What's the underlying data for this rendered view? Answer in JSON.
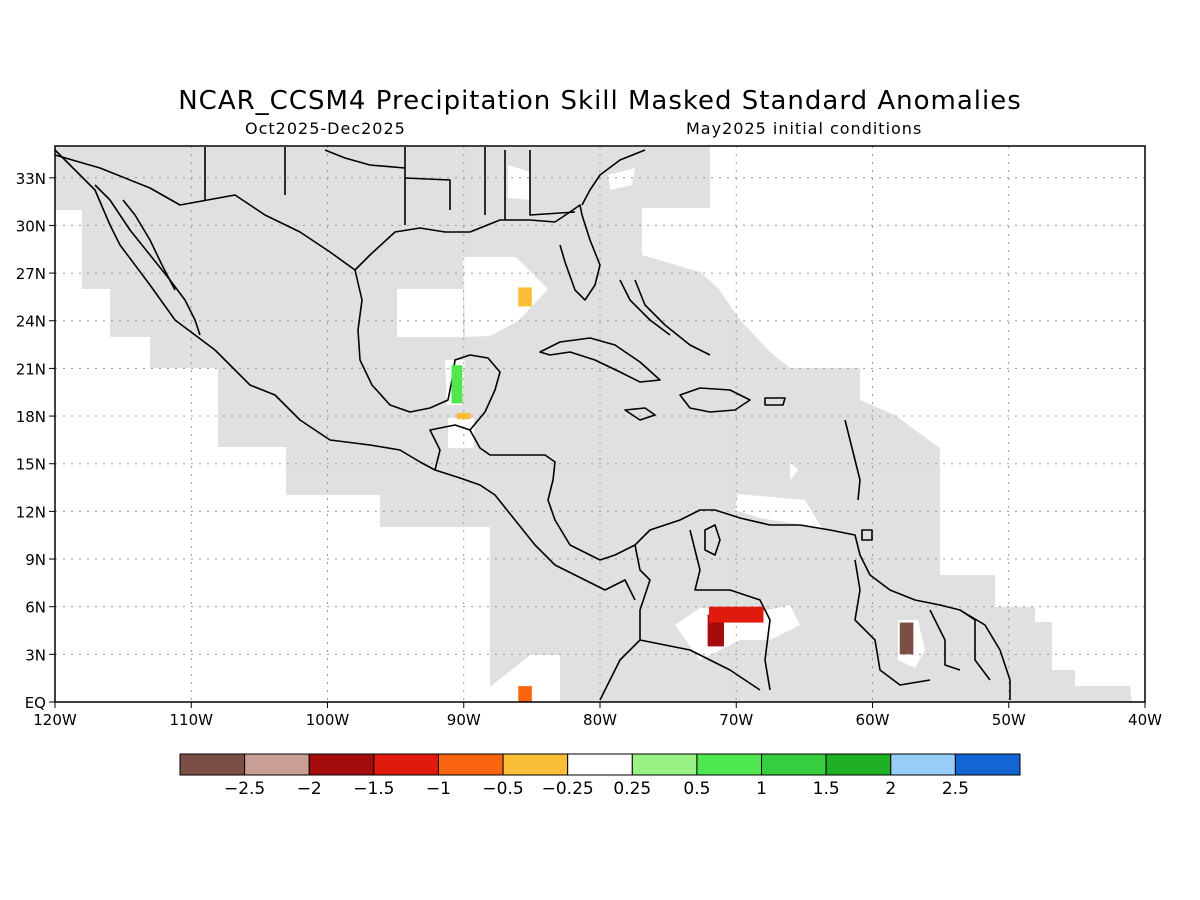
{
  "title": "NCAR_CCSM4 Precipitation Skill Masked Standard Anomalies",
  "subtitle_left": "Oct2025-Dec2025",
  "subtitle_right": "May2025 initial conditions",
  "map": {
    "lon_range": [
      -120,
      -40
    ],
    "lat_range": [
      0,
      35
    ],
    "grid": true,
    "land_outline_color": "#000000",
    "masked_fill_color": "#e0e0e0",
    "lon_ticks": [
      {
        "value": -120,
        "label": "120W"
      },
      {
        "value": -110,
        "label": "110W"
      },
      {
        "value": -100,
        "label": "100W"
      },
      {
        "value": -90,
        "label": "90W"
      },
      {
        "value": -80,
        "label": "80W"
      },
      {
        "value": -70,
        "label": "70W"
      },
      {
        "value": -60,
        "label": "60W"
      },
      {
        "value": -50,
        "label": "50W"
      },
      {
        "value": -40,
        "label": "40W"
      }
    ],
    "lat_ticks": [
      {
        "value": 0,
        "label": "EQ"
      },
      {
        "value": 3,
        "label": "3N"
      },
      {
        "value": 6,
        "label": "6N"
      },
      {
        "value": 9,
        "label": "9N"
      },
      {
        "value": 12,
        "label": "12N"
      },
      {
        "value": 15,
        "label": "15N"
      },
      {
        "value": 18,
        "label": "18N"
      },
      {
        "value": 21,
        "label": "21N"
      },
      {
        "value": 24,
        "label": "24N"
      },
      {
        "value": 27,
        "label": "27N"
      },
      {
        "value": 30,
        "label": "30N"
      },
      {
        "value": 33,
        "label": "33N"
      }
    ],
    "anomaly_cells": [
      {
        "lon": -85.5,
        "lat": 25.5,
        "level": "-0.5 to -0.25"
      },
      {
        "lon": -90.5,
        "lat": 20.0,
        "level": "0.5 to 1"
      },
      {
        "lon": -90.0,
        "lat": 18.0,
        "level": "-0.5 to -0.25"
      },
      {
        "lon": -85.5,
        "lat": 0.5,
        "level": "-1 to -0.5"
      },
      {
        "lon": -71.5,
        "lat": 4.5,
        "level": "-2 to -1.5"
      },
      {
        "lon": -70.0,
        "lat": 5.5,
        "level": "-1.5 to -1"
      },
      {
        "lon": -57.5,
        "lat": 4.0,
        "level": "below -2.5"
      }
    ]
  },
  "colorbar": {
    "colors": [
      "#7b4f45",
      "#c99f95",
      "#a50d0d",
      "#e01a0d",
      "#fc6510",
      "#fbbe37",
      "#ffffff",
      "#99f084",
      "#4fe74f",
      "#36cd3e",
      "#1fb024",
      "#99cdf9",
      "#1465d4"
    ],
    "labels": [
      "-2.5",
      "-2",
      "-1.5",
      "-1",
      "-0.5",
      "-0.25",
      "0.25",
      "0.5",
      "1",
      "1.5",
      "2",
      "2.5"
    ]
  }
}
